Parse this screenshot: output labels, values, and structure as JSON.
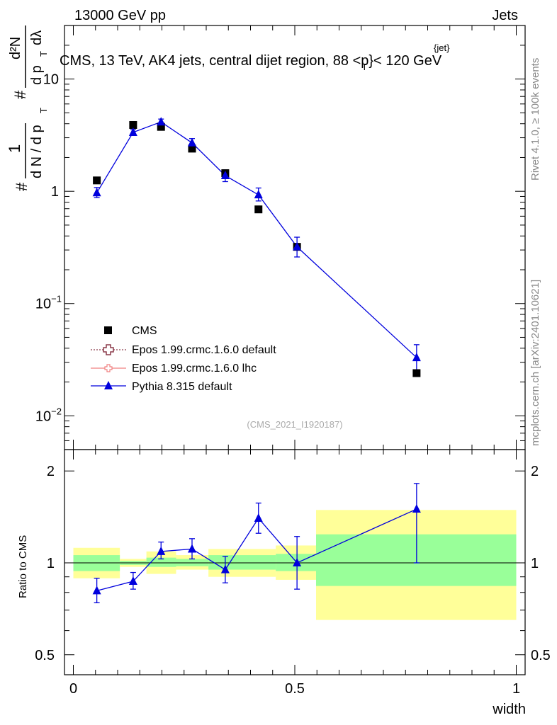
{
  "header": {
    "energy_label": "13000 GeV pp",
    "category_label": "Jets"
  },
  "title_parts": {
    "main": "CMS, 13 TeV, AK4 jets, central dijet region, 88 <p",
    "sup": "{jet}",
    "sub": "T",
    "tail": "}< 120 GeV"
  },
  "side_labels": {
    "rivet": "Rivet 4.1.0, ≥ 100k events",
    "mcplots": "mcplots.cern.ch [arXiv:2401.10621]"
  },
  "analysis_id": "(CMS_2021_I1920187)",
  "colors": {
    "cms": "#000000",
    "epos_default": "#8b3a4a",
    "epos_lhc": "#f08080",
    "pythia": "#0000dd",
    "band_yellow": "#ffff99",
    "band_green": "#99ff99"
  },
  "chart_data": [
    {
      "type": "scatter",
      "name": "main",
      "ylabel": "# 1/(d N / d pT #) d²N/(d pT dλ)",
      "ylabel_parts": {
        "hash": "#",
        "one": "1",
        "dn": "d N / d p",
        "t": "T",
        "d2n": "d²N",
        "dpt": "d p",
        "dl": "dλ"
      },
      "yscale": "log",
      "ylim": [
        0.005,
        30
      ],
      "xlim": [
        -0.02,
        1.02
      ],
      "y_ticks": [
        {
          "value": 0.01,
          "base": "10",
          "exp": "−2"
        },
        {
          "value": 0.1,
          "base": "10",
          "exp": "−1"
        },
        {
          "value": 1,
          "label": "1"
        },
        {
          "value": 10,
          "label": "10"
        }
      ],
      "series": [
        {
          "name": "CMS",
          "marker": "square",
          "points": [
            {
              "x": 0.053,
              "y": 1.25
            },
            {
              "x": 0.135,
              "y": 3.9
            },
            {
              "x": 0.198,
              "y": 3.75
            },
            {
              "x": 0.268,
              "y": 2.4
            },
            {
              "x": 0.343,
              "y": 1.45
            },
            {
              "x": 0.418,
              "y": 0.69
            },
            {
              "x": 0.505,
              "y": 0.32
            },
            {
              "x": 0.775,
              "y": 0.024
            }
          ]
        },
        {
          "name": "Epos 1.99.crmc.1.6.0 default",
          "marker": "open-cross",
          "points": []
        },
        {
          "name": "Epos 1.99.crmc.1.6.0 lhc",
          "marker": "open-cross",
          "points": []
        },
        {
          "name": "Pythia 8.315 default",
          "marker": "triangle",
          "points": [
            {
              "x": 0.053,
              "y": 0.97,
              "lo": 0.88,
              "hi": 1.08
            },
            {
              "x": 0.135,
              "y": 3.35,
              "lo": 3.15,
              "hi": 3.55
            },
            {
              "x": 0.198,
              "y": 4.15,
              "lo": 3.9,
              "hi": 4.4
            },
            {
              "x": 0.268,
              "y": 2.7,
              "lo": 2.48,
              "hi": 2.95
            },
            {
              "x": 0.343,
              "y": 1.38,
              "lo": 1.22,
              "hi": 1.55
            },
            {
              "x": 0.418,
              "y": 0.93,
              "lo": 0.82,
              "hi": 1.07
            },
            {
              "x": 0.505,
              "y": 0.32,
              "lo": 0.26,
              "hi": 0.39
            },
            {
              "x": 0.775,
              "y": 0.033,
              "lo": 0.025,
              "hi": 0.043
            }
          ]
        }
      ],
      "legend": [
        "CMS",
        "Epos 1.99.crmc.1.6.0 default",
        "Epos 1.99.crmc.1.6.0 lhc",
        "Pythia 8.315 default"
      ],
      "legend_position": "bottom-left"
    },
    {
      "type": "line",
      "name": "ratio",
      "ylabel": "Ratio to CMS",
      "yscale": "log",
      "ylim": [
        0.43,
        2.35
      ],
      "xlim": [
        -0.02,
        1.02
      ],
      "xlabel": "width",
      "x_ticks": [
        {
          "value": 0,
          "label": "0"
        },
        {
          "value": 0.5,
          "label": "0.5"
        },
        {
          "value": 1,
          "label": "1"
        }
      ],
      "y_ticks": [
        {
          "value": 0.5,
          "label": "0.5"
        },
        {
          "value": 1,
          "label": "1"
        },
        {
          "value": 2,
          "label": "2"
        }
      ],
      "bands": [
        {
          "x0": 0.0,
          "x1": 0.105,
          "y_lo": 0.89,
          "y_hi": 1.12,
          "g_lo": 0.94,
          "g_hi": 1.06
        },
        {
          "x0": 0.105,
          "x1": 0.165,
          "y_lo": 0.97,
          "y_hi": 1.03,
          "g_lo": 0.985,
          "g_hi": 1.015
        },
        {
          "x0": 0.165,
          "x1": 0.232,
          "y_lo": 0.92,
          "y_hi": 1.09,
          "g_lo": 0.97,
          "g_hi": 1.04
        },
        {
          "x0": 0.232,
          "x1": 0.305,
          "y_lo": 0.95,
          "y_hi": 1.06,
          "g_lo": 0.975,
          "g_hi": 1.03
        },
        {
          "x0": 0.305,
          "x1": 0.38,
          "y_lo": 0.9,
          "y_hi": 1.11,
          "g_lo": 0.95,
          "g_hi": 1.06
        },
        {
          "x0": 0.38,
          "x1": 0.457,
          "y_lo": 0.9,
          "y_hi": 1.11,
          "g_lo": 0.95,
          "g_hi": 1.06
        },
        {
          "x0": 0.457,
          "x1": 0.548,
          "y_lo": 0.88,
          "y_hi": 1.14,
          "g_lo": 0.94,
          "g_hi": 1.07
        },
        {
          "x0": 0.548,
          "x1": 1.0,
          "y_lo": 0.65,
          "y_hi": 1.49,
          "g_lo": 0.84,
          "g_hi": 1.24
        }
      ],
      "series": [
        {
          "name": "Pythia 8.315 default",
          "points": [
            {
              "x": 0.053,
              "y": 0.81,
              "lo": 0.74,
              "hi": 0.89
            },
            {
              "x": 0.135,
              "y": 0.87,
              "lo": 0.82,
              "hi": 0.93
            },
            {
              "x": 0.198,
              "y": 1.09,
              "lo": 1.03,
              "hi": 1.17
            },
            {
              "x": 0.268,
              "y": 1.11,
              "lo": 1.03,
              "hi": 1.2
            },
            {
              "x": 0.343,
              "y": 0.95,
              "lo": 0.86,
              "hi": 1.05
            },
            {
              "x": 0.418,
              "y": 1.4,
              "lo": 1.25,
              "hi": 1.57
            },
            {
              "x": 0.505,
              "y": 1.0,
              "lo": 0.82,
              "hi": 1.22
            },
            {
              "x": 0.775,
              "y": 1.5,
              "lo": 1.0,
              "hi": 1.82
            }
          ]
        }
      ]
    }
  ]
}
